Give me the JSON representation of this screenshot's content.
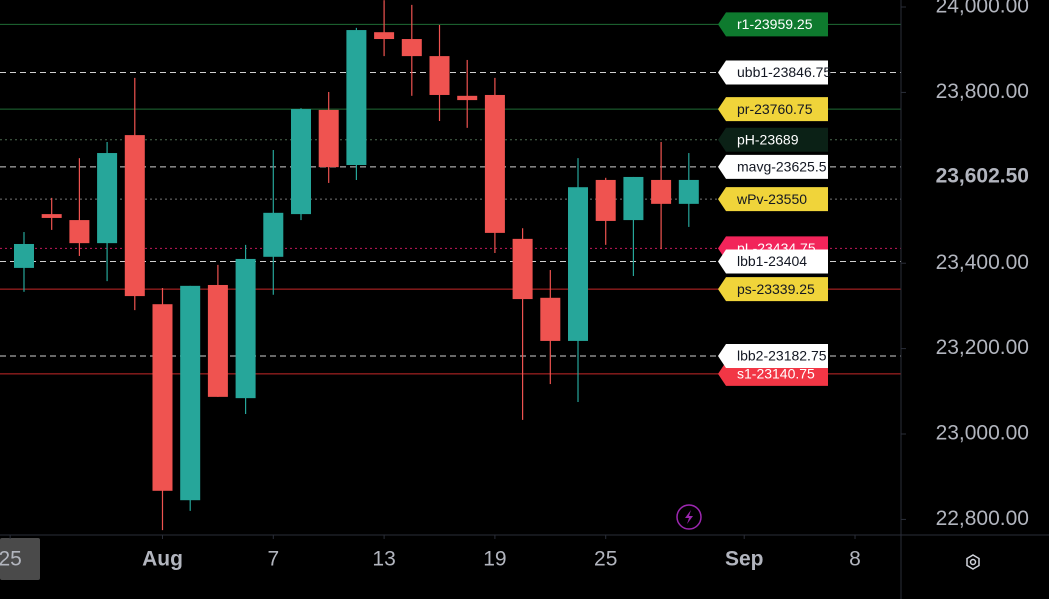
{
  "chart_data": {
    "type": "candlestick",
    "up_color": "#26a69a",
    "down_color": "#ef5350",
    "candles": [
      {
        "open": 23389,
        "high": 23473,
        "low": 23333,
        "close": 23445
      },
      {
        "open": 23515,
        "high": 23553,
        "low": 23478,
        "close": 23506
      },
      {
        "open": 23501,
        "high": 23646,
        "low": 23417,
        "close": 23447
      },
      {
        "open": 23447,
        "high": 23684,
        "low": 23358,
        "close": 23658
      },
      {
        "open": 23700,
        "high": 23834,
        "low": 23290,
        "close": 23323
      },
      {
        "open": 23304,
        "high": 23342,
        "low": 22775,
        "close": 22867
      },
      {
        "open": 22845,
        "high": 23347,
        "low": 22820,
        "close": 23347
      },
      {
        "open": 23349,
        "high": 23396,
        "low": 23087,
        "close": 23087
      },
      {
        "open": 23084,
        "high": 23443,
        "low": 23047,
        "close": 23410
      },
      {
        "open": 23415,
        "high": 23665,
        "low": 23326,
        "close": 23518
      },
      {
        "open": 23515,
        "high": 23763,
        "low": 23501,
        "close": 23761
      },
      {
        "open": 23759,
        "high": 23801,
        "low": 23588,
        "close": 23625
      },
      {
        "open": 23630,
        "high": 23951,
        "low": 23595,
        "close": 23946
      },
      {
        "open": 23941,
        "high": 24016,
        "low": 23885,
        "close": 23925
      },
      {
        "open": 23925,
        "high": 24005,
        "low": 23792,
        "close": 23885
      },
      {
        "open": 23885,
        "high": 23958,
        "low": 23733,
        "close": 23794
      },
      {
        "open": 23792,
        "high": 23876,
        "low": 23717,
        "close": 23782
      },
      {
        "open": 23794,
        "high": 23834,
        "low": 23424,
        "close": 23471
      },
      {
        "open": 23457,
        "high": 23482,
        "low": 23033,
        "close": 23316
      },
      {
        "open": 23319,
        "high": 23384,
        "low": 23117,
        "close": 23218
      },
      {
        "open": 23218,
        "high": 23646,
        "low": 23075,
        "close": 23578
      },
      {
        "open": 23595,
        "high": 23600,
        "low": 23443,
        "close": 23499
      },
      {
        "open": 23501,
        "high": 23602,
        "low": 23370,
        "close": 23602
      },
      {
        "open": 23595,
        "high": 23684,
        "low": 23433,
        "close": 23539
      },
      {
        "open": 23539,
        "high": 23658,
        "low": 23485,
        "close": 23595
      }
    ],
    "xlim": [
      -0.866,
      31.66
    ],
    "xticks": [
      {
        "value": -0.5,
        "label": "25"
      },
      {
        "value": 5,
        "label": "Aug"
      },
      {
        "value": 9,
        "label": "7"
      },
      {
        "value": 13,
        "label": "13"
      },
      {
        "value": 17,
        "label": "19"
      },
      {
        "value": 21,
        "label": "25"
      },
      {
        "value": 26,
        "label": "Sep"
      },
      {
        "value": 30,
        "label": "8"
      }
    ],
    "ylim": [
      22763.5,
      24016.4
    ],
    "yticks": [
      {
        "value": 24000,
        "label": "24,000.00"
      },
      {
        "value": 23800,
        "label": "23,800.00"
      },
      {
        "value": 23400,
        "label": "23,400.00"
      },
      {
        "value": 23200,
        "label": "23,200.00"
      },
      {
        "value": 23000,
        "label": "23,000.00"
      },
      {
        "value": 22800,
        "label": "22,800.00"
      }
    ],
    "current_price": {
      "value": 23602.5,
      "label": "23,602.50"
    },
    "levels": [
      {
        "label": "r1-23959.25",
        "value": 23959.25,
        "color": "#0e7a2e",
        "text_color": "#ffffff",
        "line_color": "#1f6b35",
        "style": "solid"
      },
      {
        "label": "ubb1-23846.75",
        "value": 23846.75,
        "color": "#ffffff",
        "text_color": "#131722",
        "line_color": "#d0d0d0",
        "style": "dashed"
      },
      {
        "label": "pr-23760.75",
        "value": 23760.75,
        "color": "#f0d43a",
        "text_color": "#131722",
        "line_color": "#1f6b35",
        "style": "solid"
      },
      {
        "label": "pH-23689",
        "value": 23689,
        "color": "#0b2116",
        "text_color": "#ffffff",
        "line_color": "#4c6b50",
        "style": "dotted"
      },
      {
        "label": "mavg-23625.5",
        "value": 23625.5,
        "color": "#ffffff",
        "text_color": "#131722",
        "line_color": "#d0d0d0",
        "style": "dashed"
      },
      {
        "label": "wPv-23550",
        "value": 23550,
        "color": "#f0d43a",
        "text_color": "#131722",
        "line_color": "#777777",
        "style": "dotted"
      },
      {
        "label": "pL-23434.75",
        "value": 23434.75,
        "color": "#f2245a",
        "text_color": "#ffffff",
        "line_color": "#c2185b",
        "style": "dotted"
      },
      {
        "label": "lbb1-23404",
        "value": 23404,
        "color": "#ffffff",
        "text_color": "#131722",
        "line_color": "#d0d0d0",
        "style": "dashed"
      },
      {
        "label": "ps-23339.25",
        "value": 23339.25,
        "color": "#f0d43a",
        "text_color": "#131722",
        "line_color": "#c62828",
        "style": "solid"
      },
      {
        "label": "s1-23140.75",
        "value": 23140.75,
        "color": "#f23645",
        "text_color": "#ffffff",
        "line_color": "#c62828",
        "style": "solid"
      },
      {
        "label": "lbb2-23182.75",
        "value": 23182.75,
        "color": "#ffffff",
        "text_color": "#131722",
        "line_color": "#d0d0d0",
        "style": "dashed"
      }
    ]
  }
}
